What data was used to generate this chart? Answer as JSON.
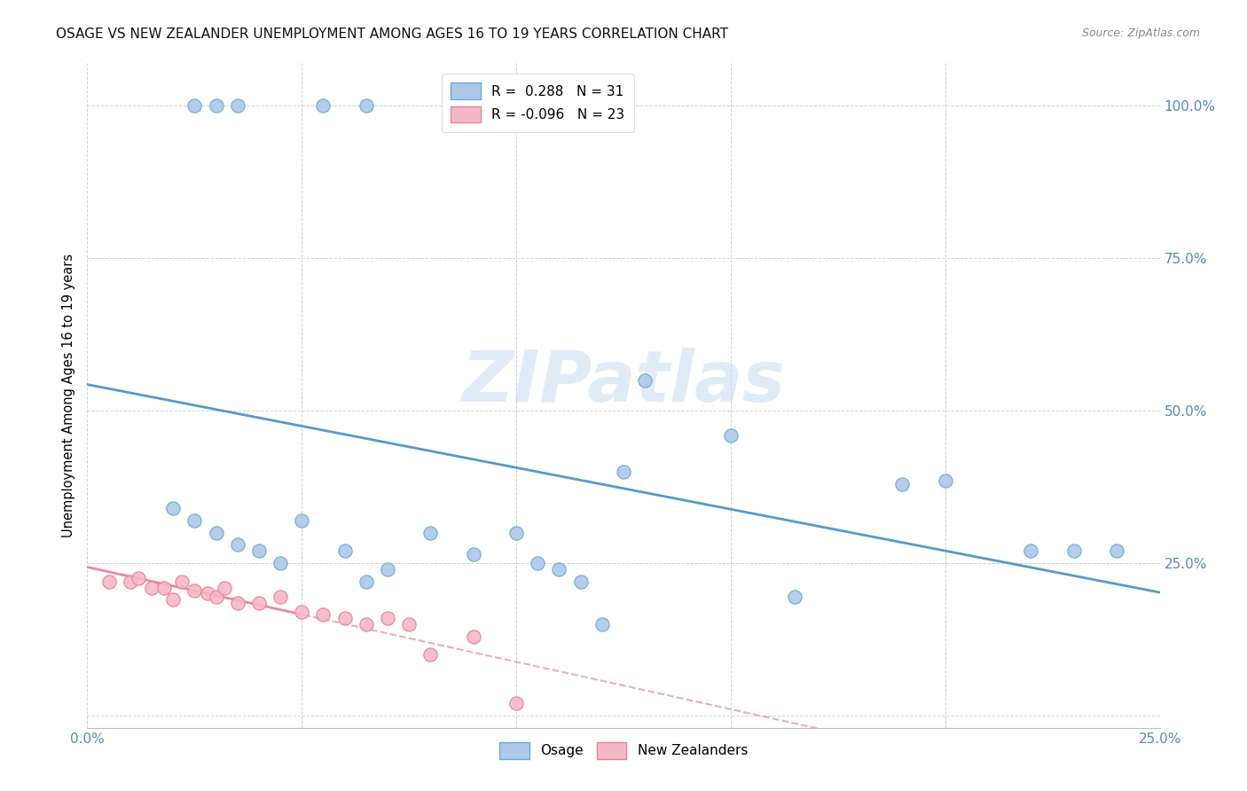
{
  "title": "OSAGE VS NEW ZEALANDER UNEMPLOYMENT AMONG AGES 16 TO 19 YEARS CORRELATION CHART",
  "source": "Source: ZipAtlas.com",
  "ylabel": "Unemployment Among Ages 16 to 19 years",
  "xlim": [
    0.0,
    0.25
  ],
  "ylim": [
    -0.02,
    1.07
  ],
  "osage_R": "0.288",
  "osage_N": "31",
  "nz_R": "-0.096",
  "nz_N": "23",
  "osage_color": "#adc8e8",
  "nz_color": "#f5b8c8",
  "osage_edge_color": "#6aaad4",
  "nz_edge_color": "#e8809a",
  "osage_line_color": "#5599cc",
  "nz_line_color": "#e888a0",
  "legend_osage_label": "Osage",
  "legend_nz_label": "New Zealanders",
  "watermark": "ZIPatlas",
  "osage_x": [
    0.02,
    0.025,
    0.03,
    0.035,
    0.04,
    0.045,
    0.05,
    0.06,
    0.065,
    0.07,
    0.08,
    0.09,
    0.1,
    0.105,
    0.11,
    0.115,
    0.12,
    0.125,
    0.13,
    0.15,
    0.165,
    0.19,
    0.2,
    0.22,
    0.23,
    0.24,
    0.025,
    0.03,
    0.035,
    0.055,
    0.065
  ],
  "osage_y": [
    0.34,
    0.32,
    0.3,
    0.28,
    0.27,
    0.25,
    0.32,
    0.27,
    0.22,
    0.24,
    0.3,
    0.265,
    0.3,
    0.25,
    0.24,
    0.22,
    0.15,
    0.4,
    0.55,
    0.46,
    0.195,
    0.38,
    0.385,
    0.27,
    0.27,
    0.27,
    1.0,
    1.0,
    1.0,
    1.0,
    1.0
  ],
  "nz_x": [
    0.005,
    0.01,
    0.012,
    0.015,
    0.018,
    0.02,
    0.022,
    0.025,
    0.028,
    0.03,
    0.032,
    0.035,
    0.04,
    0.045,
    0.05,
    0.055,
    0.06,
    0.065,
    0.07,
    0.075,
    0.08,
    0.09,
    0.1
  ],
  "nz_y": [
    0.22,
    0.22,
    0.225,
    0.21,
    0.21,
    0.19,
    0.22,
    0.205,
    0.2,
    0.195,
    0.21,
    0.185,
    0.185,
    0.195,
    0.17,
    0.165,
    0.16,
    0.15,
    0.16,
    0.15,
    0.1,
    0.13,
    0.02
  ],
  "ytick_positions": [
    0.0,
    0.25,
    0.5,
    0.75,
    1.0
  ],
  "ytick_labels": [
    "",
    "25.0%",
    "50.0%",
    "75.0%",
    "100.0%"
  ],
  "xtick_positions": [
    0.0,
    0.05,
    0.1,
    0.15,
    0.2,
    0.25
  ],
  "xtick_labels": [
    "0.0%",
    "",
    "",
    "",
    "",
    "25.0%"
  ]
}
